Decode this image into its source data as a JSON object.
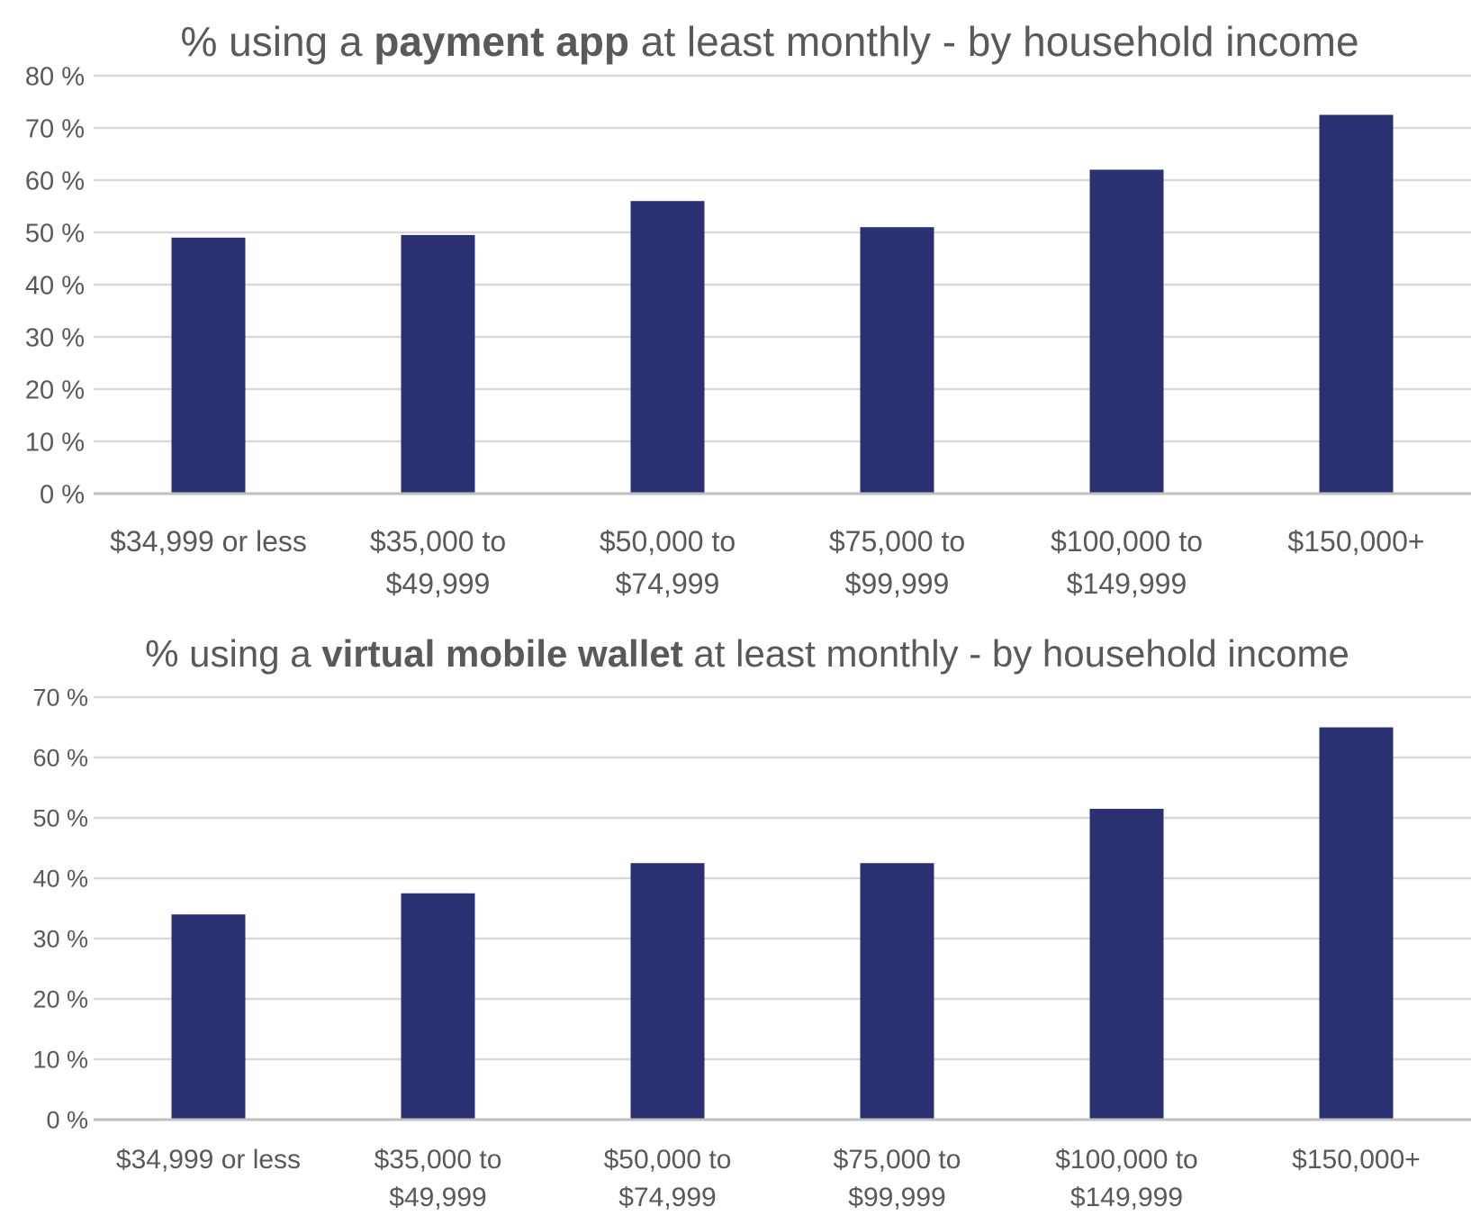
{
  "chart_data": [
    {
      "type": "bar",
      "title_parts": [
        {
          "text": "% using a ",
          "bold": false
        },
        {
          "text": "payment app",
          "bold": true
        },
        {
          "text": " at least monthly - by household income",
          "bold": false
        }
      ],
      "title": "% using a payment app at least monthly - by household income",
      "xlabel": "",
      "ylabel": "",
      "categories": [
        [
          "$34,999 or less"
        ],
        [
          "$35,000 to",
          "$49,999"
        ],
        [
          "$50,000 to",
          "$74,999"
        ],
        [
          "$75,000 to",
          "$99,999"
        ],
        [
          "$100,000 to",
          "$149,999"
        ],
        [
          "$150,000+"
        ]
      ],
      "values": [
        49,
        49.5,
        56,
        51,
        62,
        72.5
      ],
      "ylim": [
        0,
        80
      ],
      "yticks": [
        0,
        10,
        20,
        30,
        40,
        50,
        60,
        70,
        80
      ],
      "ytick_labels": [
        "0 %",
        "10 %",
        "20 %",
        "30 %",
        "40 %",
        "50 %",
        "60 %",
        "70 %",
        "80 %"
      ],
      "grid": true,
      "legend": "none",
      "bar_color": "#2a3072"
    },
    {
      "type": "bar",
      "title_parts": [
        {
          "text": "% using a ",
          "bold": false
        },
        {
          "text": "virtual mobile wallet",
          "bold": true
        },
        {
          "text": " at least monthly - by household income",
          "bold": false
        }
      ],
      "title": "% using a virtual mobile wallet at least monthly - by household income",
      "xlabel": "",
      "ylabel": "",
      "categories": [
        [
          "$34,999 or less"
        ],
        [
          "$35,000 to",
          "$49,999"
        ],
        [
          "$50,000 to",
          "$74,999"
        ],
        [
          "$75,000 to",
          "$99,999"
        ],
        [
          "$100,000 to",
          "$149,999"
        ],
        [
          "$150,000+"
        ]
      ],
      "values": [
        34,
        37.5,
        42.5,
        42.5,
        51.5,
        65
      ],
      "ylim": [
        0,
        70
      ],
      "yticks": [
        0,
        10,
        20,
        30,
        40,
        50,
        60,
        70
      ],
      "ytick_labels": [
        "0 %",
        "10 %",
        "20 %",
        "30 %",
        "40 %",
        "50 %",
        "60 %",
        "70 %"
      ],
      "grid": true,
      "legend": "none",
      "bar_color": "#2a3072"
    }
  ],
  "colors": {
    "bar": "#2a3072",
    "grid": "#d9d9d9",
    "axis": "#bfbfbf",
    "text": "#595959",
    "title": "#595959"
  }
}
